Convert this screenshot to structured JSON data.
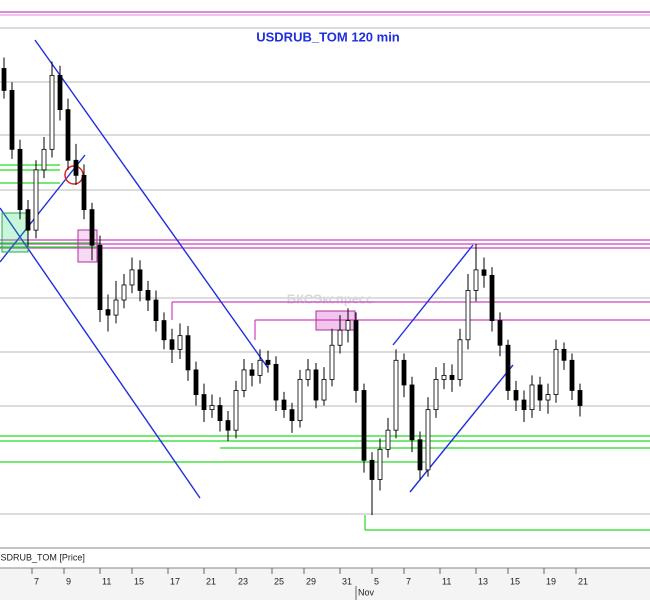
{
  "chart_data": {
    "type": "candlestick",
    "title": "USDRUB_TOM 120 min",
    "watermark": "БКСЭкспресс",
    "panel_label": "USDRUB_TOM [Price]",
    "open": [
      68.1,
      67.94,
      67.51,
      67.07,
      66.92,
      67.36,
      67.51,
      68.05,
      67.8,
      67.43,
      67.32,
      67.07,
      66.81,
      66.34,
      66.3,
      66.41,
      66.52,
      66.63,
      66.48,
      66.41,
      66.26,
      66.12,
      66.05,
      66.15,
      65.9,
      65.72,
      65.61,
      65.64,
      65.53,
      65.46,
      65.75,
      65.9,
      65.86,
      65.97,
      65.94,
      65.68,
      65.61,
      65.53,
      65.83,
      65.9,
      65.68,
      65.83,
      66.08,
      66.19,
      66.26,
      65.75,
      65.24,
      65.1,
      65.32,
      65.46,
      65.97,
      65.79,
      65.39,
      65.17,
      65.61,
      65.83,
      65.86,
      65.83,
      66.12,
      66.48,
      66.63,
      66.59,
      66.26,
      66.08,
      65.75,
      65.68,
      65.61,
      65.79,
      65.68,
      65.72,
      66.05,
      65.97,
      65.75
    ],
    "high": [
      68.18,
      68.0,
      67.58,
      67.14,
      67.43,
      67.6,
      68.15,
      68.12,
      67.88,
      67.55,
      67.4,
      67.12,
      66.88,
      66.45,
      66.55,
      66.6,
      66.72,
      66.7,
      66.55,
      66.48,
      66.32,
      66.2,
      66.24,
      66.22,
      65.96,
      65.8,
      65.72,
      65.7,
      65.6,
      65.82,
      65.98,
      65.95,
      66.05,
      66.04,
      66.0,
      65.74,
      65.66,
      65.9,
      65.98,
      65.95,
      65.92,
      66.2,
      66.3,
      66.35,
      66.32,
      65.8,
      65.3,
      65.4,
      65.55,
      66.05,
      66.02,
      65.85,
      65.45,
      65.7,
      65.92,
      65.95,
      65.94,
      66.2,
      66.6,
      66.82,
      66.72,
      66.65,
      66.32,
      66.12,
      65.82,
      65.75,
      65.86,
      65.85,
      65.8,
      66.12,
      66.1,
      66.02,
      65.8
    ],
    "low": [
      67.88,
      67.44,
      67.0,
      66.8,
      66.86,
      67.3,
      67.45,
      67.72,
      67.36,
      67.25,
      67.0,
      66.7,
      66.25,
      66.18,
      66.24,
      66.35,
      66.46,
      66.4,
      66.33,
      66.18,
      66.05,
      65.95,
      65.98,
      65.82,
      65.64,
      65.52,
      65.55,
      65.45,
      65.38,
      65.4,
      65.7,
      65.78,
      65.8,
      65.88,
      65.6,
      65.55,
      65.44,
      65.48,
      65.78,
      65.62,
      65.64,
      65.78,
      66.02,
      66.1,
      65.66,
      65.15,
      64.84,
      65.02,
      65.26,
      65.4,
      65.7,
      65.3,
      65.1,
      65.12,
      65.55,
      65.76,
      65.74,
      65.78,
      66.05,
      66.4,
      66.5,
      66.18,
      66.0,
      65.68,
      65.6,
      65.52,
      65.55,
      65.6,
      65.58,
      65.66,
      65.9,
      65.68,
      65.56
    ],
    "close": [
      67.94,
      67.51,
      67.07,
      66.92,
      67.36,
      67.51,
      68.05,
      67.8,
      67.43,
      67.32,
      67.07,
      66.81,
      66.34,
      66.3,
      66.41,
      66.52,
      66.63,
      66.48,
      66.41,
      66.26,
      66.12,
      66.05,
      66.15,
      65.9,
      65.72,
      65.61,
      65.64,
      65.53,
      65.46,
      65.75,
      65.9,
      65.86,
      65.97,
      65.94,
      65.68,
      65.61,
      65.53,
      65.83,
      65.9,
      65.68,
      65.83,
      66.08,
      66.19,
      66.26,
      65.75,
      65.24,
      65.1,
      65.32,
      65.46,
      65.97,
      65.79,
      65.39,
      65.17,
      65.61,
      65.83,
      65.86,
      65.83,
      66.12,
      66.48,
      66.63,
      66.59,
      66.26,
      66.08,
      65.75,
      65.68,
      65.61,
      65.79,
      65.68,
      65.72,
      66.05,
      65.97,
      65.75,
      65.64
    ],
    "ylim": [
      64.6,
      68.6
    ],
    "xlim": [
      -0.5,
      80.75
    ],
    "xticks": [
      {
        "value": 3.5,
        "label": "7"
      },
      {
        "value": 7.5,
        "label": "9"
      },
      {
        "value": 12,
        "label": "11"
      },
      {
        "value": 16,
        "label": "15"
      },
      {
        "value": 20.5,
        "label": "17"
      },
      {
        "value": 25,
        "label": "21"
      },
      {
        "value": 29,
        "label": "23"
      },
      {
        "value": 33.5,
        "label": "25"
      },
      {
        "value": 37.5,
        "label": "29"
      },
      {
        "value": 42,
        "label": "31"
      },
      {
        "value": 46,
        "label": "5"
      },
      {
        "value": 50,
        "label": "7"
      },
      {
        "value": 54.5,
        "label": "11"
      },
      {
        "value": 59,
        "label": "13"
      },
      {
        "value": 63,
        "label": "15"
      },
      {
        "value": 67.5,
        "label": "19"
      },
      {
        "value": 71.5,
        "label": "21"
      }
    ],
    "xticks_month": [
      {
        "value": 44,
        "label": "Nov"
      }
    ],
    "up_color": "#ffffff",
    "down_color": "#000000",
    "wick_color": "#000000"
  }
}
